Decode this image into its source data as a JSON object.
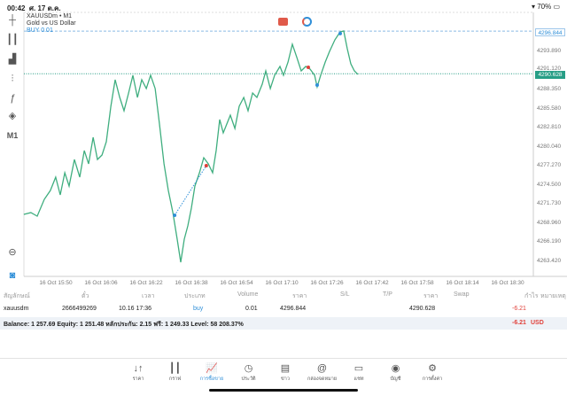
{
  "status_bar": {
    "time": "00:42",
    "date": "ศ. 17 ต.ค.",
    "battery": "70%"
  },
  "chart": {
    "symbol": "XAUUSDm • M1",
    "description": "Gold vs US Dollar",
    "order_label": "BUY 0.01",
    "ask_price": "4296.844",
    "bid_price": "4290.628",
    "y_ticks": [
      "4293.890",
      "4291.120",
      "4288.350",
      "4285.580",
      "4282.810",
      "4280.040",
      "4277.270",
      "4274.500",
      "4271.730",
      "4268.960",
      "4266.190",
      "4263.420"
    ],
    "x_ticks": [
      "16 Oct 15:50",
      "16 Oct 16:06",
      "16 Oct 16:22",
      "16 Oct 16:38",
      "16 Oct 16:54",
      "16 Oct 17:10",
      "16 Oct 17:26",
      "16 Oct 17:42",
      "16 Oct 17:58",
      "16 Oct 18:14",
      "16 Oct 18:30"
    ],
    "line_color": "#3fae7f",
    "minutes": [
      -14.4,
      -11.6,
      -9.1,
      -6.3,
      -3.9,
      -1.8,
      0,
      1.8,
      3.5,
      5.6,
      7.7,
      9.5,
      11.2,
      13,
      14.7,
      16.5,
      18.2,
      20,
      21.7,
      23.5,
      25.2,
      27,
      28.7,
      30.5,
      32.2,
      34,
      35.7,
      37.5,
      39.2,
      41,
      42.7,
      44.5,
      46.2,
      47.6,
      49,
      50.4,
      51.8,
      53.2,
      55,
      56.7,
      58.5,
      60.2,
      61.6,
      63,
      64.4,
      65.8,
      67.2,
      69,
      70.7,
      72.5,
      74.2,
      76,
      77.7,
      79.8,
      81.2,
      83,
      84.7,
      86.8,
      88.2,
      90,
      91.7,
      93.5,
      95.2,
      97,
      98.7,
      100.5,
      101.5,
      102.9,
      104.7,
      106.4,
      108.5,
      110.6,
      112,
      113.4,
      114.8,
      116.2,
      117.6
    ],
    "prices": [
      4270.08,
      4270.34,
      4269.82,
      4272.28,
      4273.57,
      4275.52,
      4272.93,
      4276.16,
      4274.22,
      4278.1,
      4275.52,
      4279.4,
      4277.46,
      4281.34,
      4278.1,
      4278.75,
      4280.69,
      4285.87,
      4289.75,
      4287.16,
      4285.22,
      4287.81,
      4290.4,
      4287.16,
      4289.75,
      4288.46,
      4290.4,
      4288.46,
      4283.28,
      4277.46,
      4273.57,
      4270.34,
      4266.46,
      4263.09,
      4266.46,
      4268.4,
      4270.99,
      4274.22,
      4276.16,
      4278.36,
      4277.46,
      4276.16,
      4279.4,
      4283.93,
      4281.99,
      4283.28,
      4284.57,
      4282.63,
      4285.87,
      4287.16,
      4285.22,
      4287.81,
      4287.16,
      4289.1,
      4291.04,
      4288.46,
      4290.4,
      4291.69,
      4290.4,
      4292.34,
      4294.93,
      4292.98,
      4291.04,
      4291.69,
      4291.3,
      4290.4,
      4288.71,
      4290.4,
      4292.34,
      4293.89,
      4295.57,
      4296.74,
      4296.87,
      4294.28,
      4292.08,
      4291.04,
      4290.53
    ],
    "trades": [
      {
        "type": "buy",
        "minute": 45.2,
        "price": 4269.95
      },
      {
        "type": "sell",
        "minute": 57.7,
        "price": 4277.2
      },
      {
        "type": "sell",
        "minute": 98,
        "price": 4291.56
      },
      {
        "type": "buy",
        "minute": 101.5,
        "price": 4288.97
      },
      {
        "type": "buy",
        "minute": 110.6,
        "price": 4296.5
      }
    ]
  },
  "toolbar": {
    "timeframe": "M1"
  },
  "table": {
    "headers": [
      "สัญลักษณ์",
      "ตั๋ว",
      "เวลา",
      "ประเภท",
      "Volume",
      "ราคา",
      "S/L",
      "T/P",
      "ราคา",
      "Swap",
      "กำไร",
      "หมายเหตุ"
    ],
    "row": {
      "symbol": "xauusdm",
      "ticket": "2666499269",
      "time": "10.16 17:36",
      "type": "buy",
      "volume": "0.01",
      "open_price": "4296.844",
      "current_price": "4290.628",
      "profit": "-6.21"
    }
  },
  "balance": {
    "text": "Balance: 1 257.69 Equity: 1 251.48 หลักประกัน: 2.15 ฟรี: 1 249.33 Level: 58 208.37%",
    "profit": "-6.21",
    "currency": "USD"
  },
  "nav": [
    {
      "label": "ราคา",
      "icon": "↓↑"
    },
    {
      "label": "กราฟ",
      "icon": "┃┃"
    },
    {
      "label": "การซื้อขาย",
      "icon": "📈"
    },
    {
      "label": "ประวัติ",
      "icon": "◷"
    },
    {
      "label": "ข่าว",
      "icon": "▤"
    },
    {
      "label": "กล่องจดหมาย",
      "icon": "@"
    },
    {
      "label": "แชท",
      "icon": "▭"
    },
    {
      "label": "บัญชี",
      "icon": "◉"
    },
    {
      "label": "การตั้งค่า",
      "icon": "⚙"
    }
  ]
}
